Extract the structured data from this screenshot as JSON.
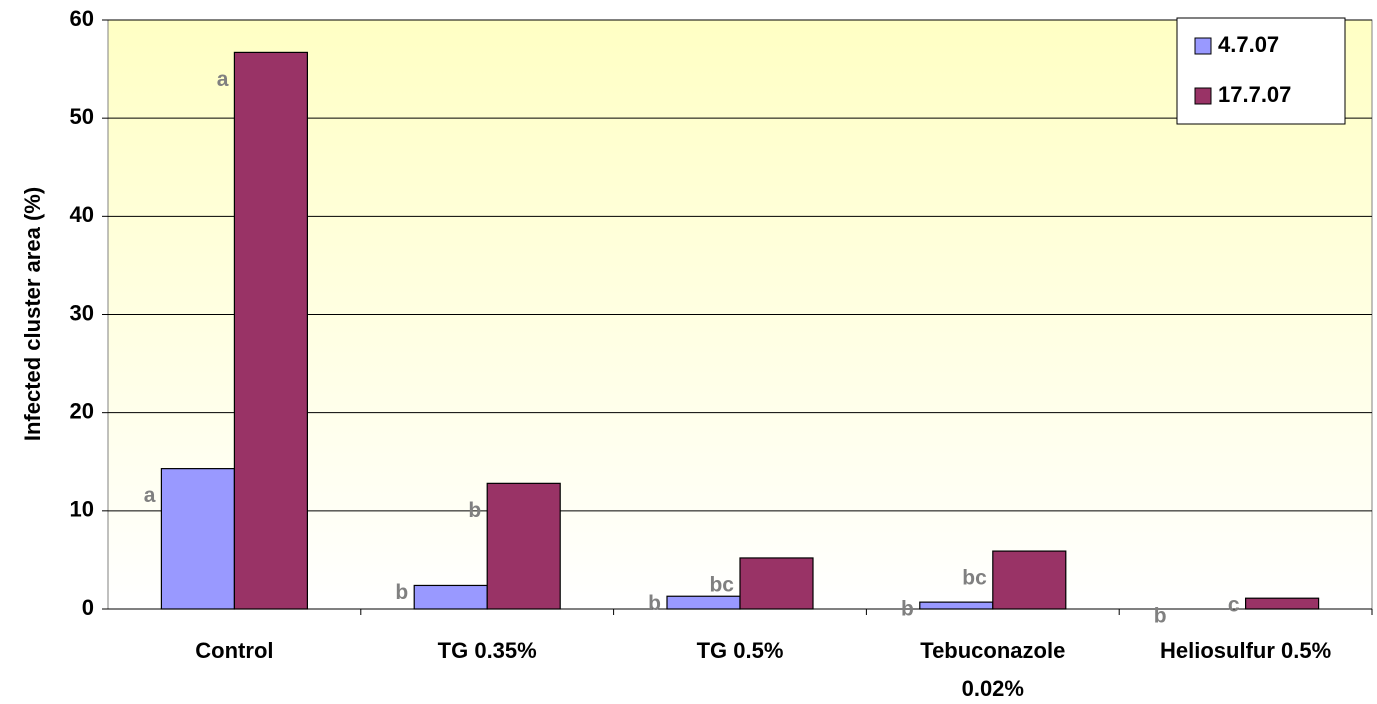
{
  "chart_data": {
    "type": "bar",
    "y_label": "Infected cluster area (%)",
    "categories": [
      "Control",
      "TG 0.35%",
      "TG 0.5%",
      "Tebuconazole 0.02%",
      "Heliosulfur 0.5%"
    ],
    "series": [
      {
        "name": "4.7.07",
        "color": "#9999ff",
        "values": [
          14.3,
          2.4,
          1.3,
          0.7,
          0
        ],
        "letters": [
          "a",
          "b",
          "b",
          "b",
          "b"
        ]
      },
      {
        "name": "17.7.07",
        "color": "#993366",
        "values": [
          56.7,
          12.8,
          5.2,
          5.9,
          1.1
        ],
        "letters": [
          "a",
          "b",
          "bc",
          "bc",
          "c"
        ]
      }
    ],
    "ylim": [
      0,
      60
    ],
    "yticks": [
      0,
      10,
      20,
      30,
      40,
      50,
      60
    ],
    "grid": true,
    "legend": "top-right"
  }
}
